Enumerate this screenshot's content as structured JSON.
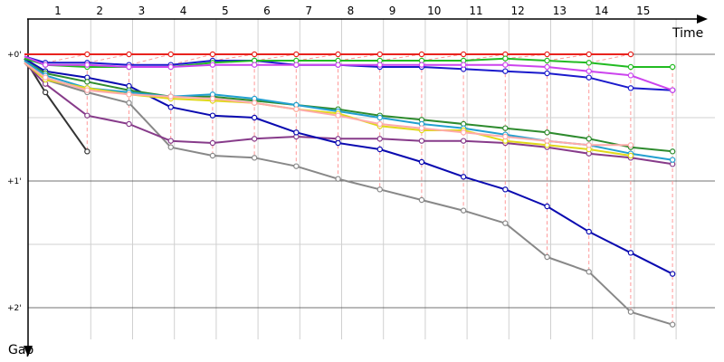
{
  "chart_data": {
    "type": "line",
    "xlabel": "Time",
    "ylabel": "Gap",
    "x": [
      "1",
      "2",
      "3",
      "4",
      "5",
      "6",
      "7",
      "8",
      "9",
      "10",
      "11",
      "12",
      "13",
      "14",
      "15"
    ],
    "y_ticks": [
      {
        "label": "+0'",
        "value": 0
      },
      {
        "label": "+1'",
        "value": 60
      },
      {
        "label": "+2'",
        "value": 120
      }
    ],
    "ylim": [
      0,
      135
    ],
    "grid": true,
    "lap_marker_color": "#ff9999",
    "series": [
      {
        "color": "#e8231e",
        "points": [
          [
            0.2,
            0
          ],
          [
            1.7,
            0
          ],
          [
            2.7,
            0
          ],
          [
            3.7,
            0
          ],
          [
            4.7,
            0
          ],
          [
            5.7,
            0
          ],
          [
            6.7,
            0
          ],
          [
            7.7,
            0
          ],
          [
            8.7,
            0
          ],
          [
            9.7,
            0
          ],
          [
            10.7,
            0
          ],
          [
            11.7,
            0
          ],
          [
            12.7,
            0
          ],
          [
            13.7,
            0
          ],
          [
            14.7,
            0
          ]
        ]
      },
      {
        "color": "#333333",
        "points": [
          [
            0.2,
            2
          ],
          [
            0.7,
            18
          ],
          [
            1.7,
            46
          ]
        ]
      },
      {
        "color": "#888888",
        "points": [
          [
            0.2,
            4
          ],
          [
            0.7,
            12
          ],
          [
            1.7,
            18
          ],
          [
            2.7,
            23
          ],
          [
            3.7,
            44
          ],
          [
            4.7,
            48
          ],
          [
            5.7,
            49
          ],
          [
            6.7,
            53
          ],
          [
            7.7,
            59
          ],
          [
            8.7,
            64
          ],
          [
            9.7,
            69
          ],
          [
            10.7,
            74
          ],
          [
            11.7,
            80
          ],
          [
            12.7,
            96
          ],
          [
            13.7,
            103
          ],
          [
            14.7,
            122
          ],
          [
            15.7,
            128
          ]
        ]
      },
      {
        "color": "#873b8a",
        "points": [
          [
            0.2,
            4
          ],
          [
            0.7,
            14
          ],
          [
            1.7,
            29
          ],
          [
            2.7,
            33
          ],
          [
            3.7,
            41
          ],
          [
            4.7,
            42
          ],
          [
            5.7,
            40
          ],
          [
            6.7,
            39
          ],
          [
            7.7,
            40
          ],
          [
            8.7,
            40
          ],
          [
            9.7,
            41
          ],
          [
            10.7,
            41
          ],
          [
            11.7,
            42
          ],
          [
            12.7,
            44
          ],
          [
            13.7,
            47
          ],
          [
            14.7,
            49
          ],
          [
            15.7,
            52
          ]
        ]
      },
      {
        "color": "#0a0ab0",
        "points": [
          [
            0.2,
            2
          ],
          [
            0.7,
            8
          ],
          [
            1.7,
            11
          ],
          [
            2.7,
            15
          ],
          [
            3.7,
            25
          ],
          [
            4.7,
            29
          ],
          [
            5.7,
            30
          ],
          [
            6.7,
            37
          ],
          [
            7.7,
            42
          ],
          [
            8.7,
            45
          ],
          [
            9.7,
            51
          ],
          [
            10.7,
            58
          ],
          [
            11.7,
            64
          ],
          [
            12.7,
            72
          ],
          [
            13.7,
            84
          ],
          [
            14.7,
            94
          ],
          [
            15.7,
            104
          ]
        ]
      },
      {
        "color": "#1a1acc",
        "points": [
          [
            0.2,
            1
          ],
          [
            0.7,
            4
          ],
          [
            1.7,
            4
          ],
          [
            2.7,
            5
          ],
          [
            3.7,
            5
          ],
          [
            4.7,
            3
          ],
          [
            5.7,
            3
          ],
          [
            6.7,
            5
          ],
          [
            7.7,
            5
          ],
          [
            8.7,
            6
          ],
          [
            9.7,
            6
          ],
          [
            10.7,
            7
          ],
          [
            11.7,
            8
          ],
          [
            12.7,
            9
          ],
          [
            13.7,
            11
          ],
          [
            14.7,
            16
          ],
          [
            15.7,
            17
          ]
        ]
      },
      {
        "color": "#22bb22",
        "points": [
          [
            0.2,
            2
          ],
          [
            0.7,
            5
          ],
          [
            1.7,
            6
          ],
          [
            2.7,
            6
          ],
          [
            3.7,
            6
          ],
          [
            4.7,
            4
          ],
          [
            5.7,
            3
          ],
          [
            6.7,
            3
          ],
          [
            7.7,
            3
          ],
          [
            8.7,
            3
          ],
          [
            9.7,
            3
          ],
          [
            10.7,
            3
          ],
          [
            11.7,
            2
          ],
          [
            12.7,
            3
          ],
          [
            13.7,
            4
          ],
          [
            14.7,
            6
          ],
          [
            15.7,
            6
          ]
        ]
      },
      {
        "color": "#cc44ee",
        "points": [
          [
            0.2,
            1
          ],
          [
            0.7,
            5
          ],
          [
            1.7,
            5
          ],
          [
            2.7,
            6
          ],
          [
            3.7,
            6
          ],
          [
            4.7,
            5
          ],
          [
            5.7,
            5
          ],
          [
            6.7,
            5
          ],
          [
            7.7,
            5
          ],
          [
            8.7,
            5
          ],
          [
            9.7,
            5
          ],
          [
            10.7,
            5
          ],
          [
            11.7,
            5
          ],
          [
            12.7,
            6
          ],
          [
            13.7,
            8
          ],
          [
            14.7,
            10
          ],
          [
            15.7,
            17
          ]
        ]
      },
      {
        "color": "#2e8b2e",
        "points": [
          [
            0.2,
            3
          ],
          [
            0.7,
            9
          ],
          [
            1.7,
            13
          ],
          [
            2.7,
            17
          ],
          [
            3.7,
            20
          ],
          [
            4.7,
            20
          ],
          [
            5.7,
            22
          ],
          [
            6.7,
            24
          ],
          [
            7.7,
            26
          ],
          [
            8.7,
            29
          ],
          [
            9.7,
            31
          ],
          [
            10.7,
            33
          ],
          [
            11.7,
            35
          ],
          [
            12.7,
            37
          ],
          [
            13.7,
            40
          ],
          [
            14.7,
            44
          ],
          [
            15.7,
            46
          ]
        ]
      },
      {
        "color": "#22a0d0",
        "points": [
          [
            0.2,
            3
          ],
          [
            0.7,
            10
          ],
          [
            1.7,
            16
          ],
          [
            2.7,
            18
          ],
          [
            3.7,
            20
          ],
          [
            4.7,
            19
          ],
          [
            5.7,
            21
          ],
          [
            6.7,
            24
          ],
          [
            7.7,
            27
          ],
          [
            8.7,
            30
          ],
          [
            9.7,
            33
          ],
          [
            10.7,
            35
          ],
          [
            11.7,
            38
          ],
          [
            12.7,
            41
          ],
          [
            13.7,
            43
          ],
          [
            14.7,
            47
          ],
          [
            15.7,
            50
          ]
        ]
      },
      {
        "color": "#e0d81a",
        "points": [
          [
            0.2,
            4
          ],
          [
            0.7,
            12
          ],
          [
            1.7,
            16
          ],
          [
            2.7,
            19
          ],
          [
            3.7,
            21
          ],
          [
            4.7,
            22
          ],
          [
            5.7,
            23
          ],
          [
            6.7,
            26
          ],
          [
            7.7,
            28
          ],
          [
            8.7,
            34
          ],
          [
            9.7,
            36
          ],
          [
            10.7,
            36
          ],
          [
            11.7,
            41
          ],
          [
            12.7,
            43
          ],
          [
            13.7,
            45
          ],
          [
            14.7,
            48
          ]
        ]
      },
      {
        "color": "#ffaaaa",
        "points": [
          [
            0.2,
            4
          ],
          [
            0.7,
            11
          ],
          [
            1.7,
            17
          ],
          [
            2.7,
            19
          ],
          [
            3.7,
            20
          ],
          [
            4.7,
            21
          ],
          [
            5.7,
            23
          ],
          [
            6.7,
            26
          ],
          [
            7.7,
            29
          ],
          [
            8.7,
            33
          ],
          [
            9.7,
            35
          ],
          [
            10.7,
            37
          ],
          [
            11.7,
            39
          ],
          [
            12.7,
            41
          ],
          [
            13.7,
            43
          ],
          [
            14.7,
            43
          ]
        ]
      }
    ]
  }
}
